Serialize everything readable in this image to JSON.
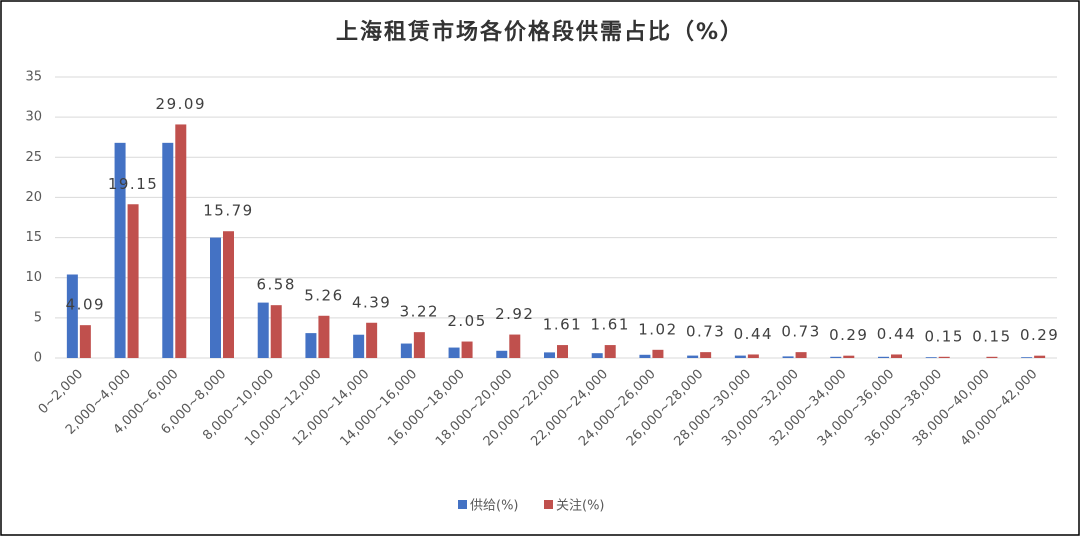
{
  "chart_data": {
    "type": "bar",
    "title": "上海租赁市场各价格段供需占比（%）",
    "categories": [
      "0~2,000",
      "2,000~4,000",
      "4,000~6,000",
      "6,000~8,000",
      "8,000~10,000",
      "10,000~12,000",
      "12,000~14,000",
      "14,000~16,000",
      "16,000~18,000",
      "18,000~20,000",
      "20,000~22,000",
      "22,000~24,000",
      "24,000~26,000",
      "26,000~28,000",
      "28,000~30,000",
      "30,000~32,000",
      "32,000~34,000",
      "34,000~36,000",
      "36,000~38,000",
      "38,000~40,000",
      "40,000~42,000"
    ],
    "series": [
      {
        "name": "供给(%)",
        "color": "#4472c4",
        "values": [
          10.4,
          26.8,
          26.8,
          15,
          6.9,
          3.1,
          2.9,
          1.8,
          1.3,
          0.9,
          0.7,
          0.6,
          0.4,
          0.3,
          0.3,
          0.2,
          0.15,
          0.15,
          0.1,
          0,
          0.1
        ]
      },
      {
        "name": "关注(%)",
        "color": "#c0504d",
        "values": [
          4.09,
          19.15,
          29.09,
          15.79,
          6.58,
          5.26,
          4.39,
          3.22,
          2.05,
          2.92,
          1.61,
          1.61,
          1.02,
          0.73,
          0.44,
          0.73,
          0.29,
          0.44,
          0.15,
          0.15,
          0.29
        ],
        "show_labels": true
      }
    ],
    "ylim": [
      0,
      35
    ],
    "yticks": [
      0,
      5,
      10,
      15,
      20,
      25,
      30,
      35
    ],
    "grid": true,
    "legend": "bottom"
  }
}
